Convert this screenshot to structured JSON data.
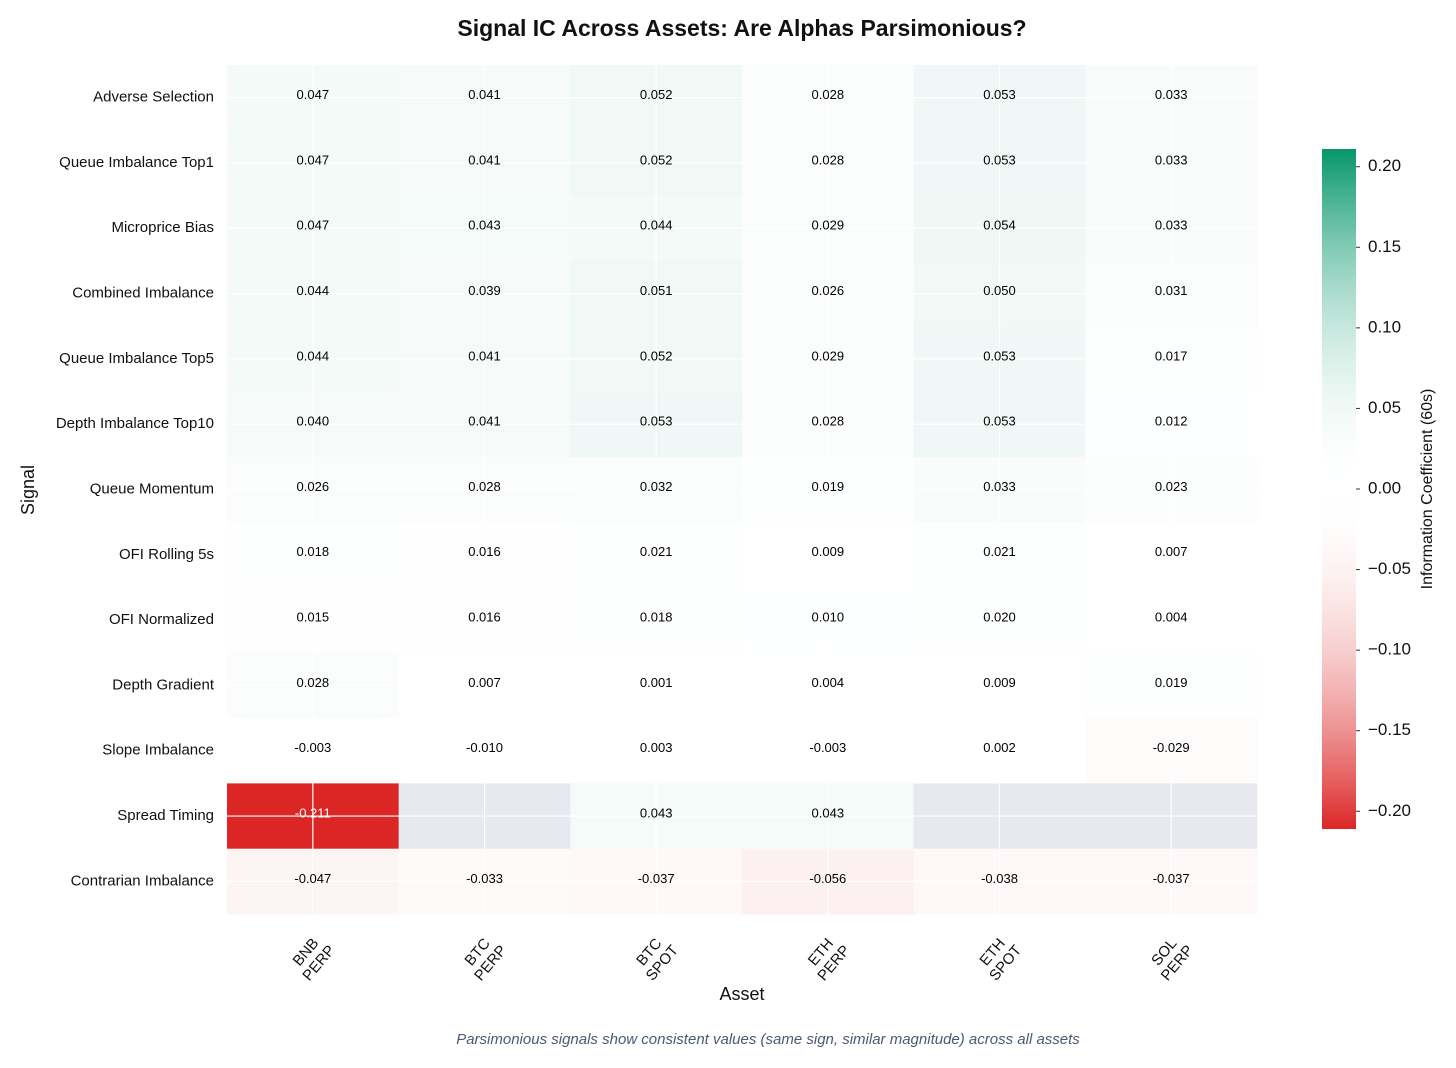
{
  "chart_data": {
    "type": "heatmap",
    "title": "Signal IC Across Assets: Are Alphas Parsimonious?",
    "x_label": "Asset",
    "y_label": "Signal",
    "colorbar_label": "Information Coefficient (60s)",
    "footnote": "Parsimonious signals show consistent values (same sign, similar magnitude) across all assets",
    "columns": [
      "BNB\nPERP",
      "BTC\nPERP",
      "BTC\nSPOT",
      "ETH\nPERP",
      "ETH\nSPOT",
      "SOL\nPERP"
    ],
    "rows": [
      "Adverse Selection",
      "Queue Imbalance Top1",
      "Microprice Bias",
      "Combined Imbalance",
      "Queue Imbalance Top5",
      "Depth Imbalance Top10",
      "Queue Momentum",
      "OFI Rolling 5s",
      "OFI Normalized",
      "Depth Gradient",
      "Slope Imbalance",
      "Spread Timing",
      "Contrarian Imbalance"
    ],
    "values": [
      [
        0.047,
        0.041,
        0.052,
        0.028,
        0.053,
        0.033
      ],
      [
        0.047,
        0.041,
        0.052,
        0.028,
        0.053,
        0.033
      ],
      [
        0.047,
        0.043,
        0.044,
        0.029,
        0.054,
        0.033
      ],
      [
        0.044,
        0.039,
        0.051,
        0.026,
        0.05,
        0.031
      ],
      [
        0.044,
        0.041,
        0.052,
        0.029,
        0.053,
        0.017
      ],
      [
        0.04,
        0.041,
        0.053,
        0.028,
        0.053,
        0.012
      ],
      [
        0.026,
        0.028,
        0.032,
        0.019,
        0.033,
        0.023
      ],
      [
        0.018,
        0.016,
        0.021,
        0.009,
        0.021,
        0.007
      ],
      [
        0.015,
        0.016,
        0.018,
        0.01,
        0.02,
        0.004
      ],
      [
        0.028,
        0.007,
        0.001,
        0.004,
        0.009,
        0.019
      ],
      [
        -0.003,
        -0.01,
        0.003,
        -0.003,
        0.002,
        -0.029
      ],
      [
        -0.211,
        null,
        0.043,
        0.043,
        null,
        null
      ],
      [
        -0.047,
        -0.033,
        -0.037,
        -0.056,
        -0.038,
        -0.037
      ]
    ],
    "value_labels": [
      [
        "0.047",
        "0.041",
        "0.052",
        "0.028",
        "0.053",
        "0.033"
      ],
      [
        "0.047",
        "0.041",
        "0.052",
        "0.028",
        "0.053",
        "0.033"
      ],
      [
        "0.047",
        "0.043",
        "0.044",
        "0.029",
        "0.054",
        "0.033"
      ],
      [
        "0.044",
        "0.039",
        "0.051",
        "0.026",
        "0.050",
        "0.031"
      ],
      [
        "0.044",
        "0.041",
        "0.052",
        "0.029",
        "0.053",
        "0.017"
      ],
      [
        "0.040",
        "0.041",
        "0.053",
        "0.028",
        "0.053",
        "0.012"
      ],
      [
        "0.026",
        "0.028",
        "0.032",
        "0.019",
        "0.033",
        "0.023"
      ],
      [
        "0.018",
        "0.016",
        "0.021",
        "0.009",
        "0.021",
        "0.007"
      ],
      [
        "0.015",
        "0.016",
        "0.018",
        "0.010",
        "0.020",
        "0.004"
      ],
      [
        "0.028",
        "0.007",
        "0.001",
        "0.004",
        "0.009",
        "0.019"
      ],
      [
        "-0.003",
        "-0.010",
        "0.003",
        "-0.003",
        "0.002",
        "-0.029"
      ],
      [
        "-0.211",
        null,
        "0.043",
        "0.043",
        null,
        null
      ],
      [
        "-0.047",
        "-0.033",
        "-0.037",
        "-0.056",
        "-0.038",
        "-0.037"
      ]
    ],
    "zlim": [
      -0.211,
      0.211
    ],
    "zticks": [
      {
        "value": 0.2,
        "label": "0.20"
      },
      {
        "value": 0.15,
        "label": "0.15"
      },
      {
        "value": 0.1,
        "label": "0.10"
      },
      {
        "value": 0.05,
        "label": "0.05"
      },
      {
        "value": 0,
        "label": "0.00"
      },
      {
        "value": -0.05,
        "label": "−0.05"
      },
      {
        "value": -0.1,
        "label": "−0.10"
      },
      {
        "value": -0.15,
        "label": "−0.15"
      },
      {
        "value": -0.2,
        "label": "−0.20"
      }
    ],
    "colormap": {
      "low": "#dc2626",
      "mid": "#ffffff",
      "high": "#059669"
    },
    "missing_color": "#e8e8f0",
    "grid": true
  }
}
